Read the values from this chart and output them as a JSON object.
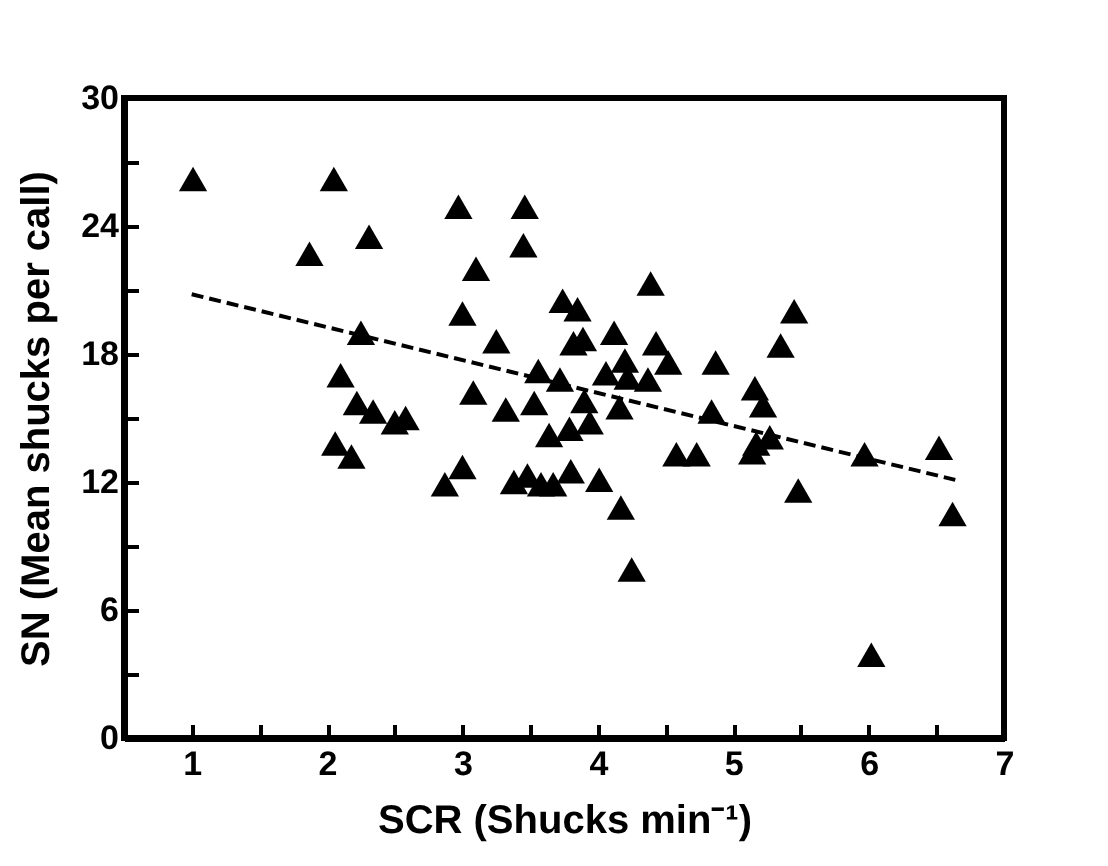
{
  "chart_data": {
    "type": "scatter",
    "xlabel": "SCR (Shucks min⁻¹)",
    "ylabel": "SN (Mean shucks per call)",
    "xlim": [
      0.5,
      7
    ],
    "ylim": [
      0,
      30
    ],
    "xticks": [
      1,
      {
        "value": 1.5,
        "label": null
      },
      2,
      {
        "value": 2.5,
        "label": null
      },
      3,
      {
        "value": 3.5,
        "label": null
      },
      4,
      {
        "value": 4.5,
        "label": null
      },
      5,
      {
        "value": 5.5,
        "label": null
      },
      6,
      {
        "value": 6.5,
        "label": null
      },
      7
    ],
    "yticks": [
      0,
      {
        "value": 3,
        "label": null
      },
      6,
      {
        "value": 9,
        "label": null
      },
      12,
      {
        "value": 15,
        "label": null
      },
      18,
      {
        "value": 21,
        "label": null
      },
      24,
      {
        "value": 27,
        "label": null
      },
      30
    ],
    "grid": false,
    "marker": "triangle",
    "series": [
      {
        "color": "#000000",
        "x": [
          1.01,
          2.05,
          1.87,
          2.31,
          2.97,
          3.46,
          3.45,
          3.1,
          3.0,
          3.25,
          2.25,
          2.1,
          3.08,
          2.22,
          2.34,
          2.5,
          2.58,
          3.32,
          3.53,
          3.56,
          2.06,
          2.18,
          2.87,
          3.0,
          3.38,
          3.48,
          3.58,
          4.39,
          3.74,
          3.85,
          5.45,
          4.12,
          3.82,
          3.89,
          5.35,
          4.43,
          4.52,
          4.87,
          4.2,
          3.72,
          4.06,
          4.22,
          4.37,
          5.16,
          5.22,
          3.9,
          4.16,
          4.84,
          3.64,
          3.79,
          3.94,
          5.97,
          6.52,
          5.17,
          5.27,
          4.58,
          4.73,
          5.14,
          3.67,
          3.8,
          4.01,
          4.17,
          4.25,
          5.48,
          6.02,
          6.62
        ],
        "values": [
          26.2,
          26.2,
          22.7,
          23.5,
          24.9,
          24.9,
          23.1,
          22.0,
          19.9,
          18.6,
          19.0,
          17.0,
          16.2,
          15.7,
          15.3,
          14.8,
          15.0,
          15.4,
          15.7,
          17.2,
          13.8,
          13.2,
          11.9,
          12.7,
          12.0,
          12.3,
          11.9,
          21.3,
          20.5,
          20.1,
          20.0,
          19.0,
          18.5,
          18.7,
          18.4,
          18.5,
          17.6,
          17.6,
          17.7,
          16.8,
          17.1,
          16.9,
          16.8,
          16.4,
          15.6,
          15.8,
          15.5,
          15.3,
          14.2,
          14.5,
          14.8,
          13.3,
          13.6,
          13.8,
          14.1,
          13.3,
          13.3,
          13.4,
          11.9,
          12.5,
          12.1,
          10.8,
          7.9,
          11.6,
          3.9,
          10.5
        ]
      },
      {
        "type": "line",
        "color": "#000000",
        "line_style": "dashed",
        "marker": "none",
        "x": [
          1.0,
          6.64
        ],
        "values": [
          20.8,
          12.1
        ]
      }
    ]
  }
}
